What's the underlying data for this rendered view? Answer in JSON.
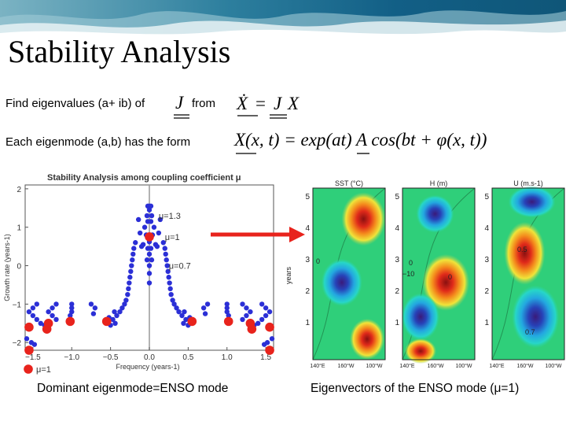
{
  "slide": {
    "title": "Stability Analysis",
    "line1_text": "Find eigenvalues (a+ ib) of",
    "line1_from": "from",
    "line2_text": "Each eigenmode (a,b) has the form",
    "eq1": {
      "lhs": "Ẋ",
      "eq": "=",
      "J": "J",
      "X": "X"
    },
    "eq2": {
      "text": "X(x, t) = exp(at) A cos(bt + φ(x, t))"
    },
    "caption_left": "Dominant eigenmode=ENSO mode",
    "caption_right": "Eigenvectors of the ENSO mode (μ=1)",
    "J_label": "J"
  },
  "colors": {
    "highlight": "#e8231c",
    "points": "#2b2fd6",
    "arrow": "#e8231c"
  },
  "chart_data": {
    "type": "scatter",
    "title": "Stability Analysis among coupling coefficient μ",
    "xlabel": "Frequency (years-1)",
    "ylabel": "Growth rate (years-1)",
    "xlim": [
      -1.6,
      1.6
    ],
    "ylim": [
      -2.2,
      2.1
    ],
    "xticks": [
      "−1.5",
      "−1.0",
      "−0.5",
      "0.0",
      "0.5",
      "1.0",
      "1.5"
    ],
    "xtick_values": [
      -1.5,
      -1.0,
      -0.5,
      0.0,
      0.5,
      1.0,
      1.5
    ],
    "yticks": [
      "2",
      "1",
      "0",
      "−1",
      "−2"
    ],
    "ytick_values": [
      2,
      1,
      0,
      -1,
      -2
    ],
    "annotations": [
      {
        "text": "μ=1.3",
        "x": 0.12,
        "y": 1.3
      },
      {
        "text": "μ=1",
        "x": 0.2,
        "y": 0.75
      },
      {
        "text": "μ=0.7",
        "x": 0.25,
        "y": 0.0
      }
    ],
    "legend": {
      "label": "μ=1",
      "placement": "bottom-left"
    },
    "series": [
      {
        "name": "eigenvalues",
        "color": "#2b2fd6",
        "points": [
          [
            0,
            1.55
          ],
          [
            -0.02,
            1.55
          ],
          [
            0.02,
            1.55
          ],
          [
            0,
            1.45
          ],
          [
            -0.03,
            1.3
          ],
          [
            0.03,
            1.3
          ],
          [
            -0.02,
            1.15
          ],
          [
            0.02,
            1.15
          ],
          [
            -0.06,
            1.0
          ],
          [
            0.06,
            1.0
          ],
          [
            -0.04,
            0.8
          ],
          [
            0.04,
            0.8
          ],
          [
            0,
            0.62
          ],
          [
            -0.02,
            0.45
          ],
          [
            0.02,
            0.45
          ],
          [
            0,
            0.3
          ],
          [
            -0.03,
            0.15
          ],
          [
            0.03,
            0.15
          ],
          [
            0,
            0
          ],
          [
            0,
            -0.2
          ],
          [
            0,
            -0.45
          ],
          [
            -0.08,
            0.55
          ],
          [
            0.08,
            0.55
          ],
          [
            -0.1,
            0.5
          ],
          [
            0.1,
            0.5
          ],
          [
            -0.12,
            0.85
          ],
          [
            0.12,
            0.85
          ],
          [
            -0.14,
            1.2
          ],
          [
            0.14,
            1.2
          ],
          [
            -0.18,
            0.6
          ],
          [
            0.18,
            0.6
          ],
          [
            -0.2,
            0.45
          ],
          [
            0.2,
            0.45
          ],
          [
            -0.21,
            0.3
          ],
          [
            0.21,
            0.3
          ],
          [
            -0.22,
            0.15
          ],
          [
            0.22,
            0.15
          ],
          [
            -0.23,
            0.0
          ],
          [
            0.23,
            0.0
          ],
          [
            -0.24,
            -0.15
          ],
          [
            0.24,
            -0.15
          ],
          [
            -0.25,
            -0.3
          ],
          [
            0.25,
            -0.3
          ],
          [
            -0.26,
            -0.45
          ],
          [
            0.26,
            -0.45
          ],
          [
            -0.27,
            -0.6
          ],
          [
            0.27,
            -0.6
          ],
          [
            -0.28,
            -0.75
          ],
          [
            0.28,
            -0.75
          ],
          [
            -0.3,
            -0.9
          ],
          [
            0.3,
            -0.9
          ],
          [
            -0.32,
            -1.0
          ],
          [
            0.32,
            -1.0
          ],
          [
            -0.35,
            -1.1
          ],
          [
            0.35,
            -1.1
          ],
          [
            -0.38,
            -1.2
          ],
          [
            0.38,
            -1.2
          ],
          [
            -0.42,
            -1.3
          ],
          [
            0.42,
            -1.3
          ],
          [
            -0.45,
            -1.2
          ],
          [
            0.45,
            -1.2
          ],
          [
            -0.47,
            -1.4
          ],
          [
            0.47,
            -1.4
          ],
          [
            -0.5,
            -1.55
          ],
          [
            0.5,
            -1.55
          ],
          [
            -0.52,
            -1.35
          ],
          [
            0.52,
            -1.35
          ],
          [
            -0.44,
            -1.5
          ],
          [
            0.44,
            -1.5
          ],
          [
            -1.45,
            -1.0
          ],
          [
            -1.5,
            -1.1
          ],
          [
            -1.55,
            -1.2
          ],
          [
            -1.5,
            -1.3
          ],
          [
            -1.45,
            -1.4
          ],
          [
            -1.4,
            -1.5
          ],
          [
            -1.35,
            -1.55
          ],
          [
            -1.2,
            -1.0
          ],
          [
            -1.25,
            -1.1
          ],
          [
            -1.3,
            -1.2
          ],
          [
            -1.25,
            -1.3
          ],
          [
            -1.2,
            -1.4
          ],
          [
            -1.0,
            -1.0
          ],
          [
            -1.0,
            -1.1
          ],
          [
            -1.0,
            -1.2
          ],
          [
            -1.02,
            -1.3
          ],
          [
            1.45,
            -1.0
          ],
          [
            1.5,
            -1.1
          ],
          [
            1.55,
            -1.2
          ],
          [
            1.5,
            -1.3
          ],
          [
            1.45,
            -1.4
          ],
          [
            1.4,
            -1.5
          ],
          [
            1.35,
            -1.55
          ],
          [
            1.2,
            -1.0
          ],
          [
            1.25,
            -1.1
          ],
          [
            1.3,
            -1.2
          ],
          [
            1.25,
            -1.3
          ],
          [
            1.2,
            -1.4
          ],
          [
            1.0,
            -1.0
          ],
          [
            1.0,
            -1.1
          ],
          [
            1.0,
            -1.2
          ],
          [
            1.02,
            -1.3
          ],
          [
            -0.75,
            -1.0
          ],
          [
            -0.7,
            -1.1
          ],
          [
            -0.72,
            -1.25
          ],
          [
            0.75,
            -1.0
          ],
          [
            0.7,
            -1.1
          ],
          [
            0.72,
            -1.25
          ],
          [
            -1.52,
            -2.0
          ],
          [
            -1.48,
            -2.05
          ],
          [
            1.52,
            -2.0
          ],
          [
            1.48,
            -2.05
          ],
          [
            -1.58,
            -1.9
          ],
          [
            1.58,
            -1.9
          ]
        ]
      },
      {
        "name": "μ=1",
        "color": "#e8231c",
        "points": [
          [
            0,
            0.75
          ],
          [
            -0.55,
            -1.45
          ],
          [
            0.55,
            -1.45
          ],
          [
            -1.02,
            -1.45
          ],
          [
            1.02,
            -1.45
          ],
          [
            -1.32,
            -1.65
          ],
          [
            1.32,
            -1.65
          ],
          [
            -1.55,
            -1.6
          ],
          [
            1.55,
            -1.6
          ],
          [
            -1.55,
            -2.2
          ],
          [
            1.55,
            -2.2
          ],
          [
            -1.3,
            -1.5
          ],
          [
            1.3,
            -1.5
          ]
        ]
      }
    ]
  },
  "panels": {
    "titles": [
      "SST (°C)",
      "H (m)",
      "U (m.s-1)"
    ],
    "ylabel": "years",
    "ytick_labels": [
      "5",
      "4",
      "3",
      "2",
      "1"
    ],
    "xtick_labels": [
      "140°E",
      "160°W",
      "100°W"
    ],
    "contour_labels": [
      "0",
      "0",
      "−10",
      "0",
      "0.5",
      "0.7"
    ]
  }
}
